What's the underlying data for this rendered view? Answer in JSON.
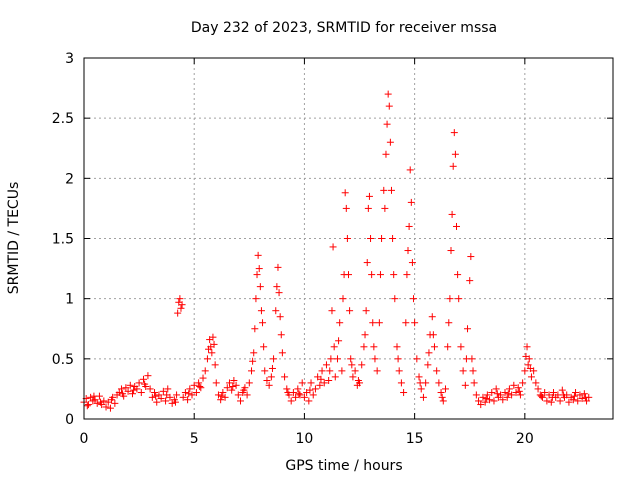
{
  "chart_data": {
    "type": "scatter",
    "title": "Day 232 of 2023, SRMTID for receiver mssa",
    "xlabel": "GPS time / hours",
    "ylabel": "SRMTID / TECUs",
    "xlim": [
      0,
      24
    ],
    "ylim": [
      0,
      3
    ],
    "xticks": [
      0,
      5,
      10,
      15,
      20
    ],
    "yticks": [
      0,
      0.5,
      1,
      1.5,
      2,
      2.5,
      3
    ],
    "xtick_labels": [
      "0",
      "5",
      "10",
      "15",
      "20"
    ],
    "ytick_labels": [
      "0",
      "0.5",
      "1",
      "1.5",
      "2",
      "2.5",
      "3"
    ],
    "grid": true,
    "marker": "+",
    "color": "#ff0000",
    "series": [
      {
        "name": "SRMTID",
        "points": [
          [
            0.0,
            0.14
          ],
          [
            0.1,
            0.17
          ],
          [
            0.2,
            0.12
          ],
          [
            0.3,
            0.18
          ],
          [
            0.4,
            0.15
          ],
          [
            0.5,
            0.16
          ],
          [
            0.6,
            0.13
          ],
          [
            0.7,
            0.19
          ],
          [
            0.8,
            0.12
          ],
          [
            0.9,
            0.15
          ],
          [
            1.0,
            0.1
          ],
          [
            1.1,
            0.14
          ],
          [
            1.2,
            0.09
          ],
          [
            1.3,
            0.18
          ],
          [
            1.4,
            0.13
          ],
          [
            1.5,
            0.2
          ],
          [
            1.6,
            0.22
          ],
          [
            1.7,
            0.25
          ],
          [
            1.8,
            0.19
          ],
          [
            1.9,
            0.26
          ],
          [
            2.0,
            0.23
          ],
          [
            2.1,
            0.28
          ],
          [
            2.2,
            0.21
          ],
          [
            2.3,
            0.27
          ],
          [
            2.4,
            0.25
          ],
          [
            2.5,
            0.3
          ],
          [
            2.6,
            0.22
          ],
          [
            2.7,
            0.33
          ],
          [
            2.8,
            0.27
          ],
          [
            2.9,
            0.36
          ],
          [
            3.0,
            0.25
          ],
          [
            3.1,
            0.18
          ],
          [
            3.2,
            0.22
          ],
          [
            3.3,
            0.14
          ],
          [
            3.4,
            0.2
          ],
          [
            3.5,
            0.17
          ],
          [
            3.6,
            0.23
          ],
          [
            3.7,
            0.15
          ],
          [
            3.8,
            0.25
          ],
          [
            3.9,
            0.18
          ],
          [
            4.0,
            0.13
          ],
          [
            4.1,
            0.16
          ],
          [
            4.2,
            0.2
          ],
          [
            4.25,
            0.88
          ],
          [
            4.3,
            0.97
          ],
          [
            4.35,
            1.0
          ],
          [
            4.4,
            0.92
          ],
          [
            4.45,
            0.95
          ],
          [
            4.5,
            0.18
          ],
          [
            4.6,
            0.22
          ],
          [
            4.7,
            0.16
          ],
          [
            4.8,
            0.25
          ],
          [
            4.9,
            0.2
          ],
          [
            5.0,
            0.28
          ],
          [
            5.1,
            0.22
          ],
          [
            5.2,
            0.3
          ],
          [
            5.3,
            0.26
          ],
          [
            5.4,
            0.34
          ],
          [
            5.5,
            0.4
          ],
          [
            5.6,
            0.5
          ],
          [
            5.65,
            0.58
          ],
          [
            5.7,
            0.66
          ],
          [
            5.75,
            0.6
          ],
          [
            5.8,
            0.55
          ],
          [
            5.85,
            0.68
          ],
          [
            5.9,
            0.62
          ],
          [
            5.95,
            0.45
          ],
          [
            6.0,
            0.3
          ],
          [
            6.1,
            0.2
          ],
          [
            6.2,
            0.16
          ],
          [
            6.3,
            0.22
          ],
          [
            6.4,
            0.18
          ],
          [
            6.5,
            0.26
          ],
          [
            6.6,
            0.3
          ],
          [
            6.7,
            0.24
          ],
          [
            6.8,
            0.32
          ],
          [
            6.9,
            0.28
          ],
          [
            7.0,
            0.2
          ],
          [
            7.1,
            0.15
          ],
          [
            7.2,
            0.22
          ],
          [
            7.3,
            0.26
          ],
          [
            7.4,
            0.2
          ],
          [
            7.5,
            0.3
          ],
          [
            7.6,
            0.4
          ],
          [
            7.7,
            0.55
          ],
          [
            7.75,
            0.75
          ],
          [
            7.8,
            1.0
          ],
          [
            7.85,
            1.2
          ],
          [
            7.9,
            1.36
          ],
          [
            7.95,
            1.25
          ],
          [
            8.0,
            1.1
          ],
          [
            8.05,
            0.9
          ],
          [
            8.1,
            0.8
          ],
          [
            8.2,
            0.4
          ],
          [
            8.3,
            0.32
          ],
          [
            8.4,
            0.28
          ],
          [
            8.5,
            0.35
          ],
          [
            8.6,
            0.5
          ],
          [
            8.7,
            0.9
          ],
          [
            8.75,
            1.1
          ],
          [
            8.8,
            1.26
          ],
          [
            8.85,
            1.05
          ],
          [
            8.9,
            0.85
          ],
          [
            8.95,
            0.7
          ],
          [
            9.0,
            0.55
          ],
          [
            9.1,
            0.35
          ],
          [
            9.2,
            0.25
          ],
          [
            9.3,
            0.2
          ],
          [
            9.4,
            0.15
          ],
          [
            9.5,
            0.22
          ],
          [
            9.6,
            0.18
          ],
          [
            9.7,
            0.25
          ],
          [
            9.8,
            0.2
          ],
          [
            9.9,
            0.3
          ],
          [
            10.0,
            0.18
          ],
          [
            10.1,
            0.22
          ],
          [
            10.2,
            0.15
          ],
          [
            10.3,
            0.3
          ],
          [
            10.4,
            0.2
          ],
          [
            10.5,
            0.25
          ],
          [
            10.6,
            0.35
          ],
          [
            10.7,
            0.28
          ],
          [
            10.8,
            0.4
          ],
          [
            10.9,
            0.3
          ],
          [
            11.0,
            0.45
          ],
          [
            11.1,
            0.32
          ],
          [
            11.2,
            0.5
          ],
          [
            11.25,
            0.9
          ],
          [
            11.3,
            1.43
          ],
          [
            11.35,
            0.6
          ],
          [
            11.4,
            0.35
          ],
          [
            11.5,
            0.5
          ],
          [
            11.6,
            0.8
          ],
          [
            11.7,
            0.4
          ],
          [
            11.8,
            1.2
          ],
          [
            11.85,
            1.88
          ],
          [
            11.9,
            1.75
          ],
          [
            11.95,
            1.5
          ],
          [
            12.0,
            1.2
          ],
          [
            12.05,
            0.9
          ],
          [
            12.1,
            0.5
          ],
          [
            12.2,
            0.35
          ],
          [
            12.3,
            0.4
          ],
          [
            12.4,
            0.28
          ],
          [
            12.5,
            0.3
          ],
          [
            12.6,
            0.45
          ],
          [
            12.7,
            0.6
          ],
          [
            12.8,
            0.9
          ],
          [
            12.85,
            1.3
          ],
          [
            12.9,
            1.75
          ],
          [
            12.95,
            1.85
          ],
          [
            13.0,
            1.5
          ],
          [
            13.05,
            1.2
          ],
          [
            13.1,
            0.8
          ],
          [
            13.2,
            0.5
          ],
          [
            13.3,
            0.4
          ],
          [
            13.4,
            0.8
          ],
          [
            13.5,
            1.5
          ],
          [
            13.6,
            1.9
          ],
          [
            13.7,
            2.2
          ],
          [
            13.75,
            2.45
          ],
          [
            13.8,
            2.7
          ],
          [
            13.85,
            2.6
          ],
          [
            13.9,
            2.3
          ],
          [
            13.95,
            1.9
          ],
          [
            14.0,
            1.5
          ],
          [
            14.1,
            1.0
          ],
          [
            14.2,
            0.6
          ],
          [
            14.3,
            0.4
          ],
          [
            14.4,
            0.3
          ],
          [
            14.5,
            0.22
          ],
          [
            14.6,
            0.8
          ],
          [
            14.7,
            1.4
          ],
          [
            14.75,
            1.6
          ],
          [
            14.8,
            2.07
          ],
          [
            14.85,
            1.8
          ],
          [
            14.9,
            1.3
          ],
          [
            15.0,
            0.8
          ],
          [
            15.1,
            0.5
          ],
          [
            15.2,
            0.35
          ],
          [
            15.3,
            0.25
          ],
          [
            15.4,
            0.18
          ],
          [
            15.5,
            0.3
          ],
          [
            15.6,
            0.45
          ],
          [
            15.7,
            0.7
          ],
          [
            15.8,
            0.85
          ],
          [
            15.9,
            0.6
          ],
          [
            16.0,
            0.4
          ],
          [
            16.1,
            0.3
          ],
          [
            16.2,
            0.22
          ],
          [
            16.3,
            0.15
          ],
          [
            16.4,
            0.25
          ],
          [
            16.5,
            0.6
          ],
          [
            16.6,
            1.0
          ],
          [
            16.7,
            1.7
          ],
          [
            16.75,
            2.1
          ],
          [
            16.8,
            2.38
          ],
          [
            16.85,
            2.2
          ],
          [
            16.9,
            1.6
          ],
          [
            17.0,
            1.0
          ],
          [
            17.1,
            0.6
          ],
          [
            17.2,
            0.4
          ],
          [
            17.3,
            0.28
          ],
          [
            17.4,
            0.75
          ],
          [
            17.5,
            1.15
          ],
          [
            17.55,
            1.35
          ],
          [
            17.6,
            0.5
          ],
          [
            17.7,
            0.3
          ],
          [
            17.8,
            0.2
          ],
          [
            17.9,
            0.15
          ],
          [
            18.0,
            0.12
          ],
          [
            18.1,
            0.18
          ],
          [
            18.2,
            0.14
          ],
          [
            18.3,
            0.2
          ],
          [
            18.4,
            0.16
          ],
          [
            18.5,
            0.22
          ],
          [
            18.6,
            0.15
          ],
          [
            18.7,
            0.25
          ],
          [
            18.8,
            0.18
          ],
          [
            18.9,
            0.2
          ],
          [
            19.0,
            0.16
          ],
          [
            19.1,
            0.22
          ],
          [
            19.2,
            0.18
          ],
          [
            19.3,
            0.25
          ],
          [
            19.4,
            0.2
          ],
          [
            19.5,
            0.28
          ],
          [
            19.6,
            0.22
          ],
          [
            19.7,
            0.26
          ],
          [
            19.8,
            0.2
          ],
          [
            19.9,
            0.3
          ],
          [
            20.0,
            0.4
          ],
          [
            20.05,
            0.52
          ],
          [
            20.1,
            0.6
          ],
          [
            20.15,
            0.45
          ],
          [
            20.2,
            0.5
          ],
          [
            20.3,
            0.35
          ],
          [
            20.4,
            0.4
          ],
          [
            20.5,
            0.3
          ],
          [
            20.6,
            0.25
          ],
          [
            20.7,
            0.2
          ],
          [
            20.8,
            0.18
          ],
          [
            20.9,
            0.22
          ],
          [
            21.0,
            0.15
          ],
          [
            21.1,
            0.2
          ],
          [
            21.2,
            0.14
          ],
          [
            21.3,
            0.22
          ],
          [
            21.4,
            0.18
          ],
          [
            21.5,
            0.2
          ],
          [
            21.6,
            0.15
          ],
          [
            21.7,
            0.24
          ],
          [
            21.8,
            0.18
          ],
          [
            21.9,
            0.2
          ],
          [
            22.0,
            0.14
          ],
          [
            22.1,
            0.18
          ],
          [
            22.2,
            0.16
          ],
          [
            22.3,
            0.22
          ],
          [
            22.4,
            0.15
          ],
          [
            22.5,
            0.2
          ],
          [
            22.6,
            0.17
          ],
          [
            22.7,
            0.21
          ],
          [
            22.8,
            0.15
          ],
          [
            22.9,
            0.18
          ],
          [
            0.15,
            0.11
          ],
          [
            0.45,
            0.19
          ],
          [
            0.75,
            0.14
          ],
          [
            1.25,
            0.16
          ],
          [
            1.75,
            0.21
          ],
          [
            2.25,
            0.24
          ],
          [
            2.75,
            0.29
          ],
          [
            3.25,
            0.19
          ],
          [
            3.75,
            0.2
          ],
          [
            4.15,
            0.14
          ],
          [
            4.75,
            0.21
          ],
          [
            5.25,
            0.27
          ],
          [
            6.25,
            0.19
          ],
          [
            6.75,
            0.27
          ],
          [
            7.25,
            0.24
          ],
          [
            7.65,
            0.48
          ],
          [
            8.15,
            0.6
          ],
          [
            8.55,
            0.42
          ],
          [
            9.25,
            0.22
          ],
          [
            9.75,
            0.21
          ],
          [
            10.25,
            0.24
          ],
          [
            10.75,
            0.33
          ],
          [
            11.15,
            0.4
          ],
          [
            11.55,
            0.65
          ],
          [
            11.75,
            1.0
          ],
          [
            12.15,
            0.45
          ],
          [
            12.45,
            0.32
          ],
          [
            12.75,
            0.7
          ],
          [
            13.15,
            0.6
          ],
          [
            13.45,
            1.2
          ],
          [
            13.65,
            1.75
          ],
          [
            14.05,
            1.2
          ],
          [
            14.25,
            0.5
          ],
          [
            14.65,
            1.2
          ],
          [
            14.95,
            1.0
          ],
          [
            15.25,
            0.3
          ],
          [
            15.65,
            0.55
          ],
          [
            15.85,
            0.7
          ],
          [
            16.25,
            0.18
          ],
          [
            16.55,
            0.8
          ],
          [
            16.65,
            1.4
          ],
          [
            16.95,
            1.2
          ],
          [
            17.35,
            0.5
          ],
          [
            17.65,
            0.4
          ],
          [
            18.25,
            0.17
          ],
          [
            18.75,
            0.21
          ],
          [
            19.25,
            0.21
          ],
          [
            19.75,
            0.23
          ],
          [
            20.25,
            0.42
          ],
          [
            20.75,
            0.19
          ],
          [
            21.25,
            0.18
          ],
          [
            21.75,
            0.2
          ],
          [
            22.25,
            0.19
          ],
          [
            22.75,
            0.18
          ]
        ]
      }
    ]
  }
}
